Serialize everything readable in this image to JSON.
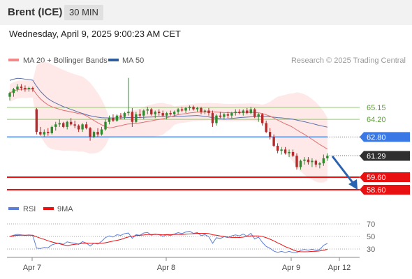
{
  "header": {
    "instrument": "Brent (ICE)",
    "timeframe": "30 MIN"
  },
  "datetime": "Wednesday, April 9, 2025 9:00:23 AM CET",
  "legend": {
    "items": [
      {
        "label": "MA 20 + Bollinger Bands",
        "color": "#f08a8a"
      },
      {
        "label": "MA 50",
        "color": "#2f5c9a"
      }
    ],
    "attribution": "Research © 2025 Trading Central"
  },
  "colors": {
    "up": "#2e8b2e",
    "down": "#b52a2a",
    "ma50": "#5b6fa8",
    "ma20": "#e07070",
    "band": "#fde0e0",
    "support": "#e81010",
    "resistance": "#8fd06a",
    "pivot": "#3a78e6",
    "current": "#2f2f2f",
    "arrow": "#2a64b0"
  },
  "chart_data": [
    {
      "type": "candlestick",
      "price_range": [
        56.5,
        69.5
      ],
      "x_ticks": [
        "Apr 7",
        "Apr 8",
        "Apr 9",
        "Apr 12"
      ],
      "levels": [
        {
          "value": 65.15,
          "label": "65.15",
          "kind": "resistance"
        },
        {
          "value": 64.2,
          "label": "64.20",
          "kind": "resistance"
        },
        {
          "value": 62.8,
          "label": "62.80",
          "kind": "pivot"
        },
        {
          "value": 61.29,
          "label": "61.29",
          "kind": "current"
        },
        {
          "value": 59.6,
          "label": "59.60",
          "kind": "support"
        },
        {
          "value": 58.6,
          "label": "58.60",
          "kind": "support"
        }
      ],
      "candles": [
        [
          66.0,
          66.4,
          65.7,
          66.3
        ],
        [
          66.3,
          66.7,
          66.0,
          66.6
        ],
        [
          66.6,
          67.0,
          66.4,
          66.8
        ],
        [
          66.8,
          67.0,
          66.5,
          66.7
        ],
        [
          66.7,
          66.9,
          66.4,
          66.6
        ],
        [
          66.6,
          66.8,
          66.4,
          66.7
        ],
        [
          66.7,
          66.8,
          66.4,
          66.6
        ],
        [
          65.0,
          65.1,
          63.0,
          63.2
        ],
        [
          63.2,
          63.6,
          62.9,
          63.0
        ],
        [
          63.0,
          63.4,
          62.8,
          63.2
        ],
        [
          63.2,
          63.5,
          62.9,
          63.1
        ],
        [
          63.1,
          63.7,
          63.0,
          63.6
        ],
        [
          63.6,
          64.0,
          63.3,
          63.8
        ],
        [
          63.8,
          64.2,
          63.6,
          63.9
        ],
        [
          63.9,
          64.0,
          63.5,
          63.6
        ],
        [
          63.6,
          64.1,
          63.4,
          64.0
        ],
        [
          64.0,
          64.3,
          63.7,
          63.8
        ],
        [
          63.8,
          64.1,
          63.5,
          63.7
        ],
        [
          63.7,
          63.8,
          63.2,
          63.4
        ],
        [
          63.4,
          63.9,
          63.2,
          63.8
        ],
        [
          63.8,
          64.0,
          63.4,
          63.5
        ],
        [
          63.5,
          63.6,
          62.5,
          62.8
        ],
        [
          62.8,
          63.3,
          62.7,
          63.2
        ],
        [
          63.2,
          63.5,
          62.8,
          63.0
        ],
        [
          63.0,
          63.6,
          62.9,
          63.4
        ],
        [
          63.4,
          64.2,
          63.3,
          64.0
        ],
        [
          64.0,
          64.5,
          63.8,
          64.3
        ],
        [
          64.3,
          64.6,
          64.0,
          64.1
        ],
        [
          64.1,
          64.6,
          64.0,
          64.5
        ],
        [
          64.5,
          64.7,
          64.2,
          64.4
        ],
        [
          64.4,
          64.8,
          64.2,
          64.7
        ],
        [
          64.7,
          67.5,
          64.5,
          64.8
        ],
        [
          64.8,
          65.1,
          63.6,
          64.0
        ],
        [
          64.0,
          64.8,
          63.9,
          64.6
        ],
        [
          64.6,
          65.0,
          64.3,
          64.5
        ],
        [
          64.5,
          65.0,
          64.2,
          64.9
        ],
        [
          64.9,
          65.2,
          64.6,
          65.0
        ],
        [
          65.0,
          65.1,
          64.5,
          64.6
        ],
        [
          64.6,
          64.9,
          64.3,
          64.8
        ],
        [
          64.8,
          65.0,
          64.5,
          64.7
        ],
        [
          64.7,
          64.9,
          64.4,
          64.5
        ],
        [
          64.5,
          64.8,
          64.2,
          64.7
        ],
        [
          64.7,
          64.9,
          64.5,
          64.6
        ],
        [
          64.6,
          64.9,
          64.4,
          64.8
        ],
        [
          64.8,
          65.1,
          64.6,
          65.0
        ],
        [
          65.0,
          65.2,
          64.8,
          64.9
        ],
        [
          64.9,
          65.2,
          64.7,
          65.1
        ],
        [
          65.1,
          65.3,
          64.9,
          65.2
        ],
        [
          65.2,
          65.3,
          64.9,
          65.0
        ],
        [
          65.0,
          65.2,
          64.8,
          65.1
        ],
        [
          65.1,
          65.2,
          64.6,
          64.8
        ],
        [
          64.8,
          65.0,
          64.6,
          64.9
        ],
        [
          64.9,
          65.1,
          64.5,
          64.7
        ],
        [
          64.7,
          64.9,
          63.6,
          63.9
        ],
        [
          63.9,
          64.6,
          63.7,
          64.5
        ],
        [
          64.5,
          64.8,
          64.3,
          64.4
        ],
        [
          64.4,
          64.7,
          64.2,
          64.6
        ],
        [
          64.6,
          64.8,
          64.3,
          64.5
        ],
        [
          64.5,
          64.8,
          64.3,
          64.7
        ],
        [
          64.7,
          65.0,
          64.5,
          64.8
        ],
        [
          64.8,
          65.0,
          64.6,
          64.7
        ],
        [
          64.7,
          65.0,
          64.5,
          64.9
        ],
        [
          64.9,
          65.1,
          64.6,
          64.7
        ],
        [
          64.7,
          65.2,
          64.6,
          65.0
        ],
        [
          65.0,
          65.1,
          64.3,
          64.4
        ],
        [
          64.4,
          64.7,
          64.0,
          64.6
        ],
        [
          64.6,
          64.7,
          63.7,
          63.9
        ],
        [
          63.9,
          64.1,
          63.1,
          63.2
        ],
        [
          63.2,
          63.5,
          62.6,
          62.8
        ],
        [
          62.8,
          63.0,
          62.0,
          62.1
        ],
        [
          62.1,
          62.3,
          61.5,
          61.7
        ],
        [
          61.7,
          62.0,
          61.4,
          61.8
        ],
        [
          61.8,
          62.0,
          61.4,
          61.5
        ],
        [
          61.5,
          61.8,
          61.2,
          61.6
        ],
        [
          61.6,
          61.8,
          61.2,
          61.3
        ],
        [
          61.3,
          61.5,
          60.2,
          60.4
        ],
        [
          60.4,
          61.0,
          60.2,
          60.9
        ],
        [
          60.9,
          61.2,
          60.6,
          61.0
        ],
        [
          61.0,
          61.2,
          60.6,
          60.8
        ],
        [
          60.8,
          61.1,
          60.4,
          60.9
        ],
        [
          60.9,
          61.0,
          60.4,
          60.6
        ],
        [
          60.6,
          60.8,
          60.3,
          60.7
        ],
        [
          60.7,
          61.4,
          60.5,
          61.1
        ],
        [
          61.1,
          61.5,
          60.9,
          61.3
        ]
      ]
    },
    {
      "type": "line",
      "legend": [
        "RSI",
        "9MA"
      ],
      "y_ticks": [
        70,
        50,
        30
      ],
      "ylim": [
        20,
        80
      ]
    }
  ]
}
